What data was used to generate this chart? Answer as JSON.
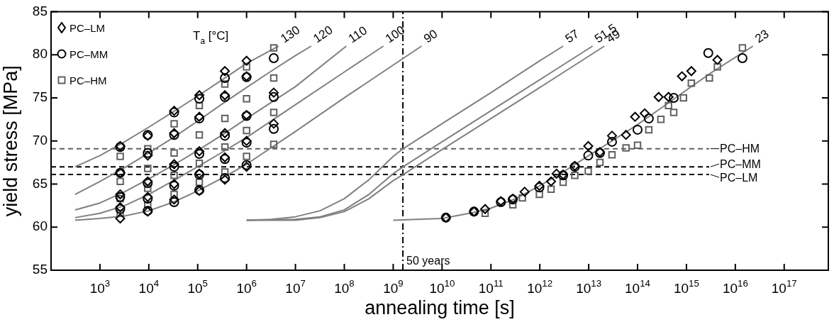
{
  "chart_data": {
    "type": "scatter",
    "xlabel": "annealing time [s]",
    "ylabel": "yield stress [MPa]",
    "xlim": [
      100,
      8e+17
    ],
    "ylim": [
      55,
      85
    ],
    "log": "x",
    "legend": "top left",
    "xticks": [
      {
        "value": 1000.0,
        "label": "10$^{3}$"
      },
      {
        "value": 10000.0,
        "label": "10$^{4}$"
      },
      {
        "value": 100000.0,
        "label": "10$^{5}$"
      },
      {
        "value": 1000000.0,
        "label": "10$^{6}$"
      },
      {
        "value": 10000000.0,
        "label": "10$^{7}$"
      },
      {
        "value": 100000000.0,
        "label": "10$^{8}$"
      },
      {
        "value": 1000000000.0,
        "label": "10$^{9}$"
      },
      {
        "value": 10000000000.0,
        "label": "10$^{10}$"
      },
      {
        "value": 100000000000.0,
        "label": "10$^{11}$"
      },
      {
        "value": 1000000000000.0,
        "label": "10$^{12}$"
      },
      {
        "value": 10000000000000.0,
        "label": "10$^{13}$"
      },
      {
        "value": 100000000000000.0,
        "label": "10$^{14}$"
      },
      {
        "value": 1000000000000000.0,
        "label": "10$^{15}$"
      },
      {
        "value": 1e+16,
        "label": "10$^{16}$"
      },
      {
        "value": 1e+17,
        "label": "10$^{17}$"
      }
    ],
    "yticks": [
      55,
      60,
      65,
      70,
      75,
      80,
      85
    ],
    "annotations": [
      "T$_{a}$ [°C]",
      {
        "text": "130",
        "x": 4500000.0,
        "y": 81.0
      },
      {
        "text": "120",
        "x": 21000000.0,
        "y": 81.0
      },
      {
        "text": "110",
        "x": 110000000.0,
        "y": 81.0
      },
      {
        "text": "100",
        "x": 630000000.0,
        "y": 81.0
      },
      {
        "text": "90",
        "x": 3800000000.0,
        "y": 81.0
      },
      {
        "text": "57",
        "x": 3000000000000.0,
        "y": 81.0
      },
      {
        "text": "51.5",
        "x": 12000000000000.0,
        "y": 81.0
      },
      {
        "text": "49",
        "x": 21000000000000.0,
        "y": 81.0
      },
      {
        "text": "23",
        "x": 2.3e+16,
        "y": 81.0
      }
    ],
    "ref_lines": [
      {
        "axis": "y",
        "value": 69.1,
        "label": "PC–HM",
        "color": "#606060",
        "line_style": "dashed"
      },
      {
        "axis": "y",
        "value": 67.0,
        "label": "PC–MM",
        "color": "#000000",
        "line_style": "dashed"
      },
      {
        "axis": "y",
        "value": 66.1,
        "label": "PC–LM",
        "color": "#000000",
        "line_style": "dashed"
      },
      {
        "axis": "x",
        "value": 1580000000.0,
        "label": "50 years",
        "color": "#000000",
        "line_style": "dashdot"
      }
    ],
    "series": [
      {
        "type": "line",
        "color": "#808080",
        "x": [
          310,
          1000,
          3200,
          10000,
          32000,
          100000,
          320000,
          1000000,
          4500000.0
        ],
        "values": [
          67.0,
          68.3,
          69.9,
          71.6,
          73.4,
          75.2,
          77.1,
          79.0,
          81.0
        ]
      },
      {
        "type": "line",
        "color": "#808080",
        "x": [
          310,
          1000,
          3200,
          10000,
          32000,
          100000,
          320000,
          1000000,
          3200000.0,
          10000000.0,
          21000000.0
        ],
        "values": [
          63.8,
          65.3,
          66.9,
          68.6,
          70.4,
          72.3,
          74.3,
          76.2,
          78.1,
          79.9,
          81.0
        ]
      },
      {
        "type": "line",
        "color": "#808080",
        "x": [
          310,
          1000,
          3200,
          10000,
          32000,
          100000,
          320000,
          1000000,
          10000000.0,
          110000000.0
        ],
        "values": [
          62.0,
          62.8,
          64.1,
          65.6,
          67.2,
          68.9,
          70.7,
          72.6,
          76.3,
          81.0
        ]
      },
      {
        "type": "line",
        "color": "#808080",
        "x": [
          310,
          1000,
          3200,
          10000,
          32000,
          100000,
          320000,
          1000000,
          10000000.0,
          100000000.0,
          630000000.0
        ],
        "values": [
          61.1,
          61.6,
          62.5,
          63.8,
          65.4,
          67.0,
          68.7,
          70.4,
          74.2,
          78.0,
          81.0
        ]
      },
      {
        "type": "line",
        "color": "#808080",
        "x": [
          310,
          1000,
          3200,
          10000,
          32000,
          100000,
          320000,
          1000000,
          10000000.0,
          100000000.0,
          1000000000.0,
          3800000000.0
        ],
        "values": [
          60.8,
          61.0,
          61.3,
          61.9,
          62.9,
          64.2,
          65.7,
          67.3,
          71.1,
          75.0,
          78.8,
          81.0
        ]
      },
      {
        "type": "line",
        "color": "#808080",
        "x": [
          1000000.0,
          3200000.0,
          10000000.0,
          32000000.0,
          100000000.0,
          320000000.0,
          1000000000.0,
          1600000000.0,
          10000000000.0,
          100000000000.0,
          1000000000000.0,
          3000000000000.0
        ],
        "values": [
          60.8,
          60.9,
          61.2,
          61.9,
          63.3,
          65.5,
          68.2,
          69.1,
          72.0,
          75.6,
          79.3,
          81.0
        ]
      },
      {
        "type": "line",
        "color": "#808080",
        "x": [
          1000000.0,
          10000000.0,
          32000000.0,
          100000000.0,
          320000000.0,
          1000000000.0,
          1600000000.0,
          10000000000.0,
          100000000000.0,
          1000000000000.0,
          12000000000000.0
        ],
        "values": [
          60.8,
          60.9,
          61.2,
          62.0,
          63.8,
          66.2,
          67.0,
          69.9,
          73.5,
          77.1,
          81.0
        ]
      },
      {
        "type": "line",
        "color": "#808080",
        "x": [
          1000000.0,
          10000000.0,
          32000000.0,
          100000000.0,
          320000000.0,
          1000000000.0,
          1600000000.0,
          10000000000.0,
          100000000000.0,
          1000000000000.0,
          21000000000000.0
        ],
        "values": [
          60.8,
          60.8,
          61.1,
          61.8,
          63.3,
          65.4,
          66.1,
          69.0,
          72.6,
          76.2,
          81.0
        ]
      },
      {
        "type": "line",
        "color": "#808080",
        "x": [
          1000000000.0,
          10000000000.0,
          45000000000.0,
          100000000000.0,
          320000000000.0,
          1000000000000.0,
          3200000000000.0,
          10000000000000.0,
          32000000000000.0,
          100000000000000.0,
          320000000000000.0,
          1000000000000000.0,
          3200000000000000.0,
          1e+16,
          2.3e+16
        ],
        "values": [
          60.8,
          61.0,
          61.7,
          62.2,
          63.3,
          64.8,
          66.5,
          68.3,
          70.1,
          71.9,
          73.9,
          75.9,
          77.9,
          79.7,
          81.0
        ]
      },
      {
        "name": "PC–LM",
        "color": "#000000",
        "marker": "diamond",
        "x": [
          2600,
          2600,
          2600,
          2600,
          2600,
          9500,
          9500,
          9500,
          9500,
          9500,
          33000,
          33000,
          33000,
          33000,
          33000,
          108000,
          108000,
          108000,
          108000,
          108000,
          360000,
          360000,
          360000,
          360000,
          360000,
          1000000,
          1000000,
          1000000,
          1000000,
          1000000,
          3600000,
          3600000,
          12000000000.0,
          45000000000.0,
          76000000000.0,
          160000000000.0,
          280000000000.0,
          490000000000.0,
          980000000000.0,
          1700000000000.0,
          2200000000000.0,
          3000000000000.0,
          5200000000000.0,
          9800000000000.0,
          17000000000000.0,
          30000000000000.0,
          58000000000000.0,
          89000000000000.0,
          140000000000000.0,
          270000000000000.0,
          430000000000000.0,
          810000000000000.0,
          1260000000000000.0,
          4300000000000000.0
        ],
        "values": [
          69.4,
          66.3,
          63.8,
          62.3,
          61.0,
          70.6,
          68.3,
          65.3,
          63.5,
          61.8,
          73.5,
          70.9,
          67.3,
          65.0,
          63.2,
          75.3,
          72.8,
          68.8,
          66.2,
          64.2,
          78.1,
          75.3,
          70.9,
          68.1,
          65.5,
          79.3,
          77.5,
          73.0,
          70.0,
          67.0,
          75.6,
          72.0,
          61.1,
          61.8,
          62.1,
          63.0,
          63.3,
          64.1,
          64.8,
          65.3,
          66.2,
          66.1,
          67.1,
          69.4,
          68.7,
          70.6,
          70.7,
          72.8,
          73.2,
          75.1,
          75.1,
          77.5,
          78.1,
          79.4
        ]
      },
      {
        "name": "PC–MM",
        "color": "#000000",
        "marker": "circle",
        "x": [
          2600,
          2600,
          2600,
          2600,
          9500,
          9500,
          9500,
          9500,
          9500,
          33000,
          33000,
          33000,
          33000,
          33000,
          108000,
          108000,
          108000,
          108000,
          108000,
          360000,
          360000,
          360000,
          360000,
          360000,
          1000000,
          1000000,
          1000000,
          1000000,
          3600000,
          3600000,
          3600000,
          12000000000.0,
          45000000000.0,
          160000000000.0,
          280000000000.0,
          980000000000.0,
          3000000000000.0,
          5200000000000.0,
          9800000000000.0,
          17000000000000.0,
          30000000000000.0,
          100000000000000.0,
          170000000000000.0,
          550000000000000.0,
          2800000000000000.0,
          1.4e+16
        ],
        "values": [
          69.3,
          66.3,
          63.5,
          62.1,
          70.7,
          68.6,
          65.1,
          63.3,
          61.9,
          73.3,
          70.7,
          67.0,
          64.8,
          62.9,
          74.9,
          72.6,
          68.5,
          66.1,
          64.3,
          77.3,
          75.1,
          70.6,
          67.9,
          65.7,
          77.4,
          72.9,
          69.8,
          67.2,
          79.6,
          75.1,
          71.4,
          61.1,
          61.8,
          62.9,
          63.2,
          64.6,
          66.0,
          67.0,
          68.3,
          68.6,
          69.9,
          71.3,
          72.6,
          75.0,
          80.2,
          79.6
        ]
      },
      {
        "name": "PC–HM",
        "color": "#606060",
        "marker": "square",
        "x": [
          2600,
          2600,
          2600,
          2600,
          9500,
          9500,
          9500,
          9500,
          33000,
          33000,
          33000,
          33000,
          108000,
          108000,
          108000,
          108000,
          360000,
          360000,
          360000,
          360000,
          1000000,
          1000000,
          1000000,
          1000000,
          3600000,
          3600000,
          3600000,
          3600000,
          76000000000.0,
          280000000000.0,
          440000000000.0,
          980000000000.0,
          1700000000000.0,
          3000000000000.0,
          5200000000000.0,
          9800000000000.0,
          17000000000000.0,
          30000000000000.0,
          58000000000000.0,
          100000000000000.0,
          170000000000000.0,
          300000000000000.0,
          550000000000000.0,
          430000000000000.0,
          870000000000000.0,
          1260000000000000.0,
          2950000000000000.0,
          4300000000000000.0,
          1.4e+16
        ],
        "values": [
          68.2,
          65.3,
          63.3,
          61.6,
          69.1,
          66.8,
          64.5,
          62.6,
          72.0,
          68.6,
          66.0,
          63.8,
          74.1,
          70.7,
          67.4,
          65.2,
          76.6,
          72.6,
          69.3,
          66.4,
          78.6,
          74.9,
          71.2,
          68.2,
          80.8,
          77.3,
          73.3,
          69.6,
          61.6,
          62.6,
          63.4,
          63.8,
          64.4,
          65.2,
          66.0,
          66.5,
          67.5,
          68.4,
          69.2,
          69.5,
          71.3,
          72.5,
          73.3,
          74.1,
          75.0,
          76.7,
          77.3,
          78.6,
          80.8
        ]
      }
    ]
  }
}
